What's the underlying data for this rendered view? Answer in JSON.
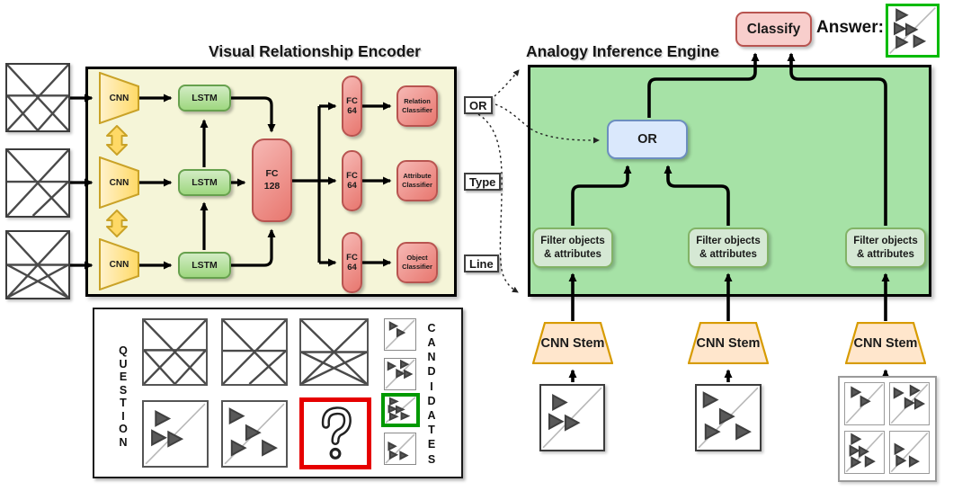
{
  "colors": {
    "encoder_bg": "#f5f5d8",
    "encoder_border": "#000000",
    "engine_bg": "#a6e2a6",
    "cnn_fill": "#ffd966",
    "cnn_fill_light": "#fff2cc",
    "cnn_border": "#c9a227",
    "lstm_fill": "#9ed77f",
    "lstm_fill_light": "#d2ecc4",
    "lstm_border": "#67a14e",
    "fc_fill": "#f6b8b4",
    "fc_fill_dark": "#e8776f",
    "fc_border": "#b85450",
    "or_fill": "#dae8fc",
    "or_border": "#6c8ebf",
    "filter_fill": "#d5e8d4",
    "filter_border": "#82b366",
    "stem_fill": "#ffe6cc",
    "stem_border": "#d79b00",
    "classify_fill": "#f8cecc",
    "classify_border": "#b85450",
    "label_bg": "#ffffff",
    "label_border": "#404040",
    "answer_border": "#00bb00",
    "correct_border": "#009900",
    "unknown_border": "#e60000",
    "arrow_color": "#000000",
    "triangle_fill": "#595959",
    "figure_line": "#4a4a4a",
    "diagonal_line": "#b8b8b8"
  },
  "encoder": {
    "title": "Visual Relationship Encoder",
    "cnn_label": "CNN",
    "lstm_label": "LSTM",
    "fc128": {
      "l1": "FC",
      "l2": "128"
    },
    "fc64": {
      "l1": "FC",
      "l2": "64"
    },
    "classifiers": [
      {
        "l1": "Relation",
        "l2": "Classifier"
      },
      {
        "l1": "Attribute",
        "l2": "Classifier"
      },
      {
        "l1": "Object",
        "l2": "Classifier"
      }
    ],
    "outputs": [
      "OR",
      "Type",
      "Line"
    ]
  },
  "engine": {
    "title": "Analogy Inference Engine",
    "or_gate": "OR",
    "filter": {
      "l1": "Filter objects",
      "l2": "& attributes"
    },
    "cnn_stem": "CNN Stem",
    "classify": "Classify",
    "answer_label": "Answer:"
  },
  "question_panel": {
    "question_label": "QUESTION",
    "candidates_label": "CANDIDATES",
    "question_mark": "?"
  },
  "figures": {
    "x1": {
      "lines": [
        [
          0,
          0,
          100,
          100
        ],
        [
          100,
          0,
          0,
          100
        ],
        [
          0,
          47,
          100,
          47
        ],
        [
          0,
          47,
          50,
          100
        ],
        [
          100,
          47,
          50,
          100
        ]
      ]
    },
    "x2": {
      "lines": [
        [
          0,
          0,
          100,
          100
        ],
        [
          100,
          0,
          0,
          100
        ],
        [
          0,
          48,
          100,
          48
        ],
        [
          100,
          48,
          42,
          100
        ]
      ]
    },
    "x3": {
      "lines": [
        [
          0,
          0,
          100,
          100
        ],
        [
          100,
          0,
          0,
          100
        ],
        [
          0,
          50,
          100,
          50
        ],
        [
          0,
          50,
          100,
          100
        ],
        [
          100,
          50,
          0,
          100
        ]
      ]
    },
    "t_q1": {
      "diagonal": true,
      "triangles": [
        [
          28,
          26
        ],
        [
          22,
          56
        ],
        [
          48,
          58
        ]
      ]
    },
    "t_q2": {
      "diagonal": true,
      "triangles": [
        [
          20,
          22
        ],
        [
          46,
          48
        ],
        [
          23,
          72
        ],
        [
          72,
          72
        ]
      ]
    },
    "c1": {
      "diagonal": true,
      "triangles": [
        [
          26,
          22
        ],
        [
          50,
          44
        ]
      ]
    },
    "c2": {
      "diagonal": true,
      "triangles": [
        [
          20,
          24
        ],
        [
          62,
          18
        ],
        [
          48,
          48
        ],
        [
          74,
          50
        ]
      ]
    },
    "c3": {
      "diagonal": true,
      "triangles": [
        [
          26,
          18
        ],
        [
          22,
          46
        ],
        [
          46,
          48
        ],
        [
          26,
          74
        ],
        [
          62,
          72
        ]
      ]
    },
    "c4": {
      "diagonal": true,
      "triangles": [
        [
          22,
          42
        ],
        [
          26,
          70
        ],
        [
          60,
          72
        ]
      ]
    }
  }
}
